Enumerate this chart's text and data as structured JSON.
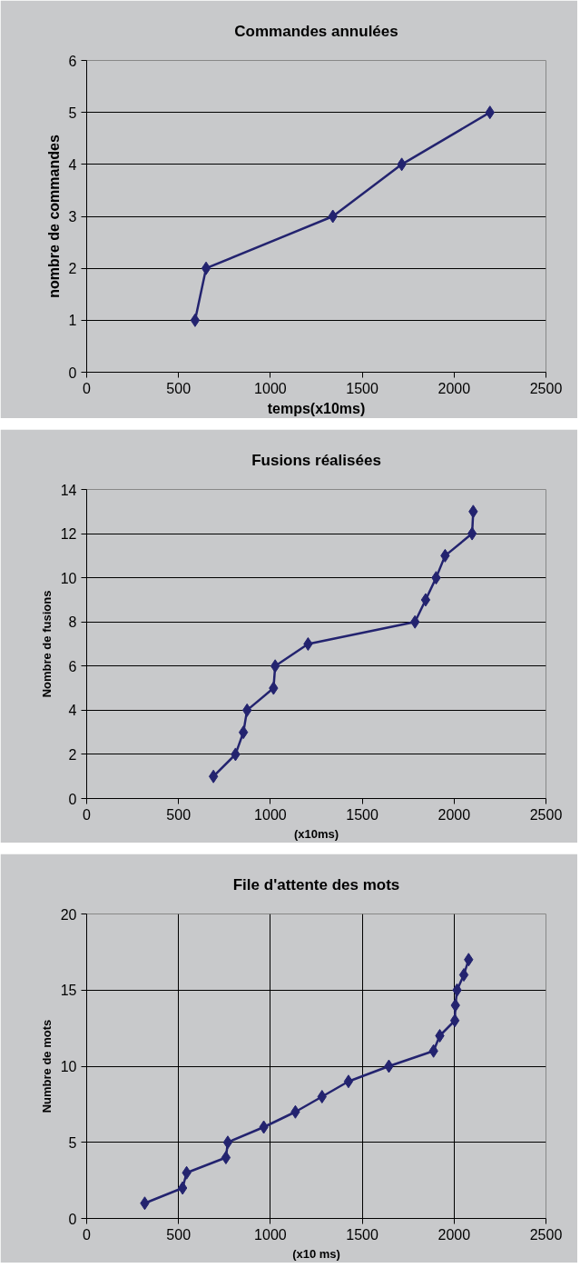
{
  "chart_data": [
    {
      "type": "line",
      "title": "Commandes annulées",
      "xlabel": "temps(x10ms)",
      "ylabel": "nombre de commandes",
      "xlim": [
        0,
        2500
      ],
      "xticks": [
        0,
        500,
        1000,
        1500,
        2000,
        2500
      ],
      "ylim": [
        0,
        6
      ],
      "yticks": [
        0,
        1,
        2,
        3,
        4,
        5,
        6
      ],
      "grid": "y",
      "marker": "diamond",
      "series": [
        {
          "color": "#23236f",
          "x": [
            590,
            650,
            1340,
            1715,
            2195
          ],
          "values": [
            1,
            2,
            3,
            4,
            5
          ]
        }
      ]
    },
    {
      "type": "line",
      "title": "Fusions réalisées",
      "xlabel": "(x10ms)",
      "ylabel": "Nombre de fusions",
      "xlim": [
        0,
        2500
      ],
      "xticks": [
        0,
        500,
        1000,
        1500,
        2000,
        2500
      ],
      "ylim": [
        0,
        14
      ],
      "yticks": [
        0,
        2,
        4,
        6,
        8,
        10,
        12,
        14
      ],
      "grid": "y",
      "marker": "diamond",
      "series": [
        {
          "color": "#23236f",
          "x": [
            690,
            810,
            853,
            873,
            1017,
            1026,
            1205,
            1787,
            1845,
            1902,
            1951,
            2098,
            2104
          ],
          "values": [
            1,
            2,
            3,
            4,
            5,
            6,
            7,
            8,
            9,
            10,
            11,
            12,
            13
          ]
        }
      ]
    },
    {
      "type": "line",
      "title": "File d'attente des mots",
      "xlabel": "(x10 ms)",
      "ylabel": "Numbre de mots",
      "xlim": [
        0,
        2500
      ],
      "xticks": [
        0,
        500,
        1000,
        1500,
        2000,
        2500
      ],
      "ylim": [
        0,
        20
      ],
      "yticks": [
        0,
        5,
        10,
        15,
        20
      ],
      "grid": true,
      "marker": "diamond",
      "series": [
        {
          "color": "#23236f",
          "x": [
            316,
            522,
            544,
            758,
            768,
            964,
            1136,
            1281,
            1425,
            1645,
            1888,
            1922,
            2004,
            2007,
            2016,
            2053,
            2079
          ],
          "values": [
            1,
            2,
            3,
            4,
            5,
            6,
            7,
            8,
            9,
            10,
            11,
            12,
            13,
            14,
            15,
            16,
            17
          ]
        }
      ]
    }
  ]
}
